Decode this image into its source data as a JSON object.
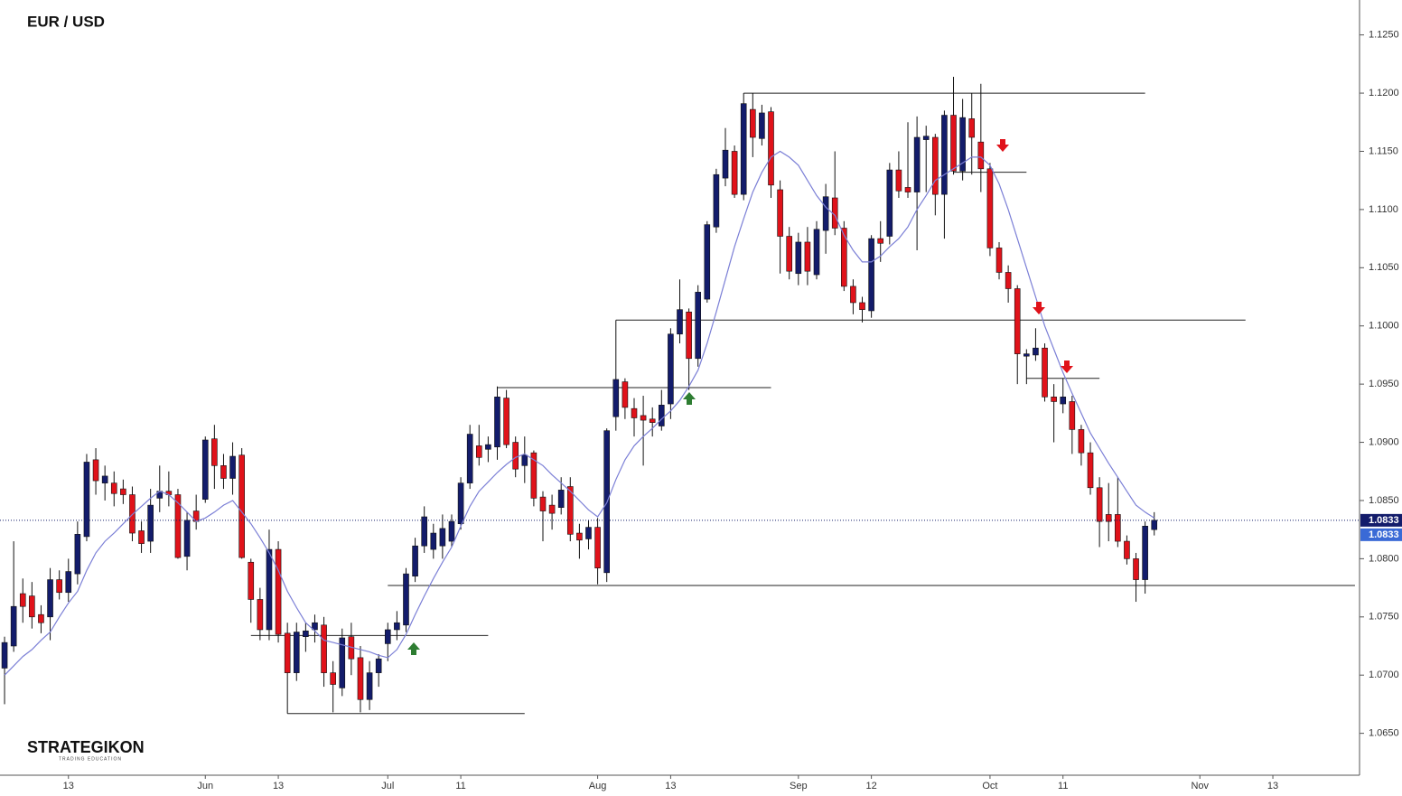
{
  "chart_data": {
    "type": "candlestick",
    "title": "EUR / USD",
    "logo": "STRATEGIKON",
    "logo_tagline": "TRADING EDUCATION",
    "up_color": "#131c6b",
    "down_color": "#e0121a",
    "ma_color": "#7b7fd6",
    "level_color": "#222222",
    "categories": [
      null,
      null,
      null,
      null,
      null,
      null,
      null,
      "13",
      null,
      null,
      null,
      null,
      null,
      null,
      null,
      null,
      null,
      null,
      null,
      null,
      null,
      null,
      "Jun",
      null,
      null,
      null,
      null,
      null,
      null,
      null,
      "13",
      null,
      null,
      null,
      null,
      null,
      null,
      null,
      null,
      null,
      null,
      null,
      "Jul",
      null,
      null,
      null,
      null,
      null,
      null,
      null,
      "11",
      null,
      null,
      null,
      null,
      null,
      null,
      null,
      null,
      null,
      null,
      null,
      null,
      null,
      null,
      "Aug",
      null,
      null,
      null,
      null,
      null,
      null,
      null,
      "13",
      null,
      null,
      null,
      null,
      null,
      null,
      null,
      null,
      null,
      null,
      null,
      null,
      null,
      "Sep",
      null,
      null,
      null,
      null,
      null,
      null,
      null,
      "12",
      null,
      null,
      null,
      null,
      null,
      null,
      null,
      null,
      null,
      null,
      null,
      null,
      "Oct",
      null,
      null,
      null,
      null,
      null,
      null,
      null,
      "11",
      null,
      null,
      null,
      null,
      null,
      null,
      null,
      null,
      null,
      null,
      null,
      null,
      null,
      null,
      "Nov",
      null,
      null,
      null,
      null,
      null,
      null,
      null,
      "13",
      null,
      null,
      null,
      null,
      null,
      null,
      null,
      null,
      null
    ],
    "open": [
      1.0706,
      1.0725,
      1.077,
      1.0768,
      1.0752,
      1.075,
      1.0782,
      1.0771,
      1.0787,
      1.0819,
      1.0885,
      1.0865,
      1.0865,
      1.086,
      1.0855,
      1.0824,
      1.0815,
      1.0852,
      1.0858,
      1.0855,
      1.0802,
      1.0841,
      1.0851,
      1.0903,
      1.088,
      1.0869,
      1.0889,
      1.0797,
      1.0765,
      1.0739,
      1.0808,
      1.0736,
      1.0702,
      1.0733,
      1.0739,
      1.0743,
      1.0702,
      1.0689,
      1.0733,
      1.0715,
      1.0679,
      1.0702,
      1.0727,
      1.0739,
      1.0743,
      1.0785,
      1.0811,
      1.0808,
      1.0811,
      1.0815,
      1.083,
      1.0865,
      1.0897,
      1.0894,
      1.0896,
      1.0938,
      1.09,
      1.088,
      1.0891,
      1.0853,
      1.0846,
      1.0844,
      1.0862,
      1.0822,
      1.0817,
      1.0827,
      1.0788,
      1.0922,
      1.0952,
      1.0929,
      1.0923,
      1.092,
      1.0914,
      1.0933,
      1.0993,
      1.1012,
      1.0972,
      1.1023,
      1.1085,
      1.1127,
      1.115,
      1.1113,
      1.1186,
      1.1161,
      1.1184,
      1.1117,
      1.1077,
      1.1045,
      1.1072,
      1.1044,
      1.1082,
      1.111,
      1.1084,
      1.1034,
      1.102,
      1.1013,
      1.1075,
      1.1077,
      1.1134,
      1.1119,
      1.1115,
      1.116,
      1.1162,
      1.1113,
      1.1181,
      1.1133,
      1.1178,
      1.1158,
      1.1135,
      1.1067,
      1.1046,
      1.1032,
      1.0974,
      1.0975,
      1.0981,
      1.0939,
      1.0933,
      1.0935,
      1.0911,
      1.0891,
      1.0861,
      1.0838,
      1.0838,
      1.0815,
      1.08,
      1.0782,
      1.0825,
      null,
      null,
      null,
      null,
      null,
      null,
      null,
      null,
      null,
      null,
      null,
      null,
      null,
      null,
      null,
      null,
      null,
      null,
      null,
      null,
      null,
      null
    ],
    "high": [
      1.0733,
      1.0815,
      1.0783,
      1.078,
      1.076,
      1.0792,
      1.079,
      1.08,
      1.0832,
      1.089,
      1.0895,
      1.088,
      1.0875,
      1.0868,
      1.0862,
      1.0832,
      1.086,
      1.088,
      1.0875,
      1.086,
      1.084,
      1.0855,
      1.0905,
      1.0915,
      1.089,
      1.09,
      1.0895,
      1.08,
      1.0775,
      1.0825,
      1.0815,
      1.0745,
      1.0745,
      1.0745,
      1.0752,
      1.075,
      1.0712,
      1.074,
      1.0745,
      1.0725,
      1.0712,
      1.0718,
      1.0745,
      1.0755,
      1.0792,
      1.0818,
      1.0845,
      1.083,
      1.0838,
      1.0838,
      1.087,
      1.0915,
      1.0915,
      1.0905,
      1.0948,
      1.0945,
      1.0905,
      1.0905,
      1.0893,
      1.0858,
      1.0855,
      1.087,
      1.087,
      1.083,
      1.0833,
      1.0835,
      1.0912,
      1.1005,
      1.0955,
      1.0938,
      1.094,
      1.093,
      1.0945,
      1.0998,
      1.104,
      1.1015,
      1.1035,
      1.109,
      1.1135,
      1.117,
      1.1155,
      1.12,
      1.12,
      1.119,
      1.1188,
      1.1125,
      1.1085,
      1.108,
      1.1085,
      1.109,
      1.1122,
      1.115,
      1.109,
      1.104,
      1.1025,
      1.1078,
      1.109,
      1.114,
      1.115,
      1.1175,
      1.118,
      1.1172,
      1.1165,
      1.1185,
      1.1214,
      1.1195,
      1.12,
      1.1208,
      1.114,
      1.1072,
      1.1052,
      1.1035,
      1.098,
      1.0998,
      1.0985,
      1.095,
      1.0955,
      1.094,
      1.0915,
      1.09,
      1.087,
      1.0865,
      1.087,
      1.082,
      1.0805,
      1.0832,
      1.084,
      null,
      null,
      null,
      null,
      null,
      null,
      null,
      null,
      null,
      null,
      null,
      null,
      null,
      null,
      null,
      null,
      null,
      null,
      null,
      null,
      null,
      null
    ],
    "low": [
      1.0675,
      1.072,
      1.0745,
      1.074,
      1.0736,
      1.073,
      1.0765,
      1.0763,
      1.0778,
      1.0815,
      1.0855,
      1.085,
      1.0845,
      1.0847,
      1.0815,
      1.0805,
      1.0805,
      1.084,
      1.0845,
      1.08,
      1.079,
      1.0825,
      1.0848,
      1.086,
      1.086,
      1.0855,
      1.08,
      1.0745,
      1.073,
      1.073,
      1.0728,
      1.0667,
      1.0695,
      1.072,
      1.0728,
      1.069,
      1.0668,
      1.0682,
      1.07,
      1.0668,
      1.067,
      1.069,
      1.0712,
      1.073,
      1.0737,
      1.078,
      1.0805,
      1.08,
      1.08,
      1.081,
      1.0825,
      1.086,
      1.088,
      1.0883,
      1.0885,
      1.0895,
      1.087,
      1.0865,
      1.0845,
      1.0815,
      1.0825,
      1.0838,
      1.0815,
      1.08,
      1.0808,
      1.0778,
      1.078,
      1.091,
      1.092,
      1.0905,
      1.088,
      1.0905,
      1.091,
      1.092,
      1.0985,
      1.0945,
      1.0965,
      1.102,
      1.108,
      1.112,
      1.111,
      1.1108,
      1.1145,
      1.1155,
      1.111,
      1.1045,
      1.104,
      1.1035,
      1.1035,
      1.104,
      1.1062,
      1.1078,
      1.103,
      1.101,
      1.1003,
      1.1007,
      1.1055,
      1.107,
      1.111,
      1.111,
      1.1065,
      1.1115,
      1.1095,
      1.1075,
      1.113,
      1.1125,
      1.113,
      1.1115,
      1.106,
      1.104,
      1.102,
      1.095,
      1.095,
      1.097,
      1.0935,
      1.09,
      1.0925,
      1.089,
      1.088,
      1.0855,
      1.081,
      1.0815,
      1.081,
      1.0795,
      1.0763,
      1.077,
      1.082,
      null,
      null,
      null,
      null,
      null,
      null,
      null,
      null,
      null,
      null,
      null,
      null,
      null,
      null,
      null,
      null,
      null,
      null,
      null,
      null,
      null,
      null
    ],
    "close": [
      1.0728,
      1.0759,
      1.0759,
      1.075,
      1.0745,
      1.0782,
      1.0771,
      1.0789,
      1.0821,
      1.0883,
      1.0867,
      1.0871,
      1.0856,
      1.0855,
      1.0822,
      1.0813,
      1.0846,
      1.0858,
      1.0855,
      1.0801,
      1.0833,
      1.0832,
      1.0902,
      1.088,
      1.0869,
      1.0888,
      1.0801,
      1.0765,
      1.0739,
      1.0808,
      1.0735,
      1.0702,
      1.0737,
      1.0738,
      1.0745,
      1.0702,
      1.0692,
      1.0732,
      1.0714,
      1.0679,
      1.0702,
      1.0714,
      1.0739,
      1.0745,
      1.0787,
      1.0811,
      1.0836,
      1.0822,
      1.0826,
      1.0832,
      1.0865,
      1.0907,
      1.0887,
      1.0898,
      1.0939,
      1.0898,
      1.0877,
      1.0889,
      1.0852,
      1.0841,
      1.0839,
      1.0859,
      1.0821,
      1.0816,
      1.0827,
      1.0792,
      1.091,
      1.0954,
      1.093,
      1.0921,
      1.0919,
      1.0917,
      1.0932,
      1.0993,
      1.1014,
      1.0972,
      1.1029,
      1.1087,
      1.113,
      1.1151,
      1.1113,
      1.1191,
      1.1162,
      1.1183,
      1.1121,
      1.1077,
      1.1047,
      1.1072,
      1.1047,
      1.1083,
      1.1111,
      1.1084,
      1.1034,
      1.102,
      1.1014,
      1.1075,
      1.1071,
      1.1134,
      1.1116,
      1.1115,
      1.1162,
      1.1163,
      1.1113,
      1.1181,
      1.1133,
      1.1179,
      1.1162,
      1.1135,
      1.1067,
      1.1046,
      1.1032,
      1.0976,
      1.0976,
      1.0981,
      1.0939,
      1.0935,
      1.0939,
      1.0911,
      1.0891,
      1.0861,
      1.0832,
      1.0832,
      1.0815,
      1.08,
      1.0782,
      1.0828,
      1.0833,
      null,
      null,
      null,
      null,
      null,
      null,
      null,
      null,
      null,
      null,
      null,
      null,
      null,
      null,
      null,
      null,
      null,
      null,
      null,
      null,
      null,
      null
    ],
    "ma": [
      1.07,
      1.0708,
      1.0716,
      1.0722,
      1.073,
      1.0737,
      1.075,
      1.0762,
      1.0772,
      1.079,
      1.0805,
      1.0815,
      1.0822,
      1.083,
      1.0838,
      1.0845,
      1.0852,
      1.0858,
      1.0855,
      1.0848,
      1.084,
      1.0832,
      1.0835,
      1.084,
      1.0846,
      1.085,
      1.084,
      1.083,
      1.0818,
      1.0805,
      1.079,
      1.0772,
      1.0758,
      1.0745,
      1.0738,
      1.073,
      1.0728,
      1.0726,
      1.0724,
      1.0722,
      1.072,
      1.0717,
      1.0715,
      1.0722,
      1.0735,
      1.0752,
      1.0768,
      1.0783,
      1.0797,
      1.081,
      1.0828,
      1.0845,
      1.0858,
      1.0866,
      1.0874,
      1.0881,
      1.0887,
      1.089,
      1.0885,
      1.088,
      1.0872,
      1.0865,
      1.0858,
      1.085,
      1.0842,
      1.0836,
      1.0848,
      1.0868,
      1.0885,
      1.0897,
      1.0905,
      1.0912,
      1.092,
      1.0927,
      1.0936,
      1.0948,
      1.0962,
      1.0985,
      1.1012,
      1.104,
      1.1068,
      1.1092,
      1.1115,
      1.1132,
      1.1145,
      1.115,
      1.1145,
      1.1138,
      1.1125,
      1.1112,
      1.1102,
      1.1095,
      1.1078,
      1.1065,
      1.1055,
      1.1055,
      1.106,
      1.1068,
      1.1075,
      1.1085,
      1.11,
      1.1112,
      1.1125,
      1.113,
      1.1135,
      1.114,
      1.1145,
      1.1145,
      1.1138,
      1.1122,
      1.11,
      1.1075,
      1.105,
      1.1025,
      1.1,
      1.098,
      1.096,
      1.0942,
      1.0925,
      1.0908,
      1.0895,
      1.0882,
      1.087,
      1.0858,
      1.0846,
      1.084,
      1.0835,
      null,
      null,
      null,
      null,
      null,
      null,
      null,
      null,
      null,
      null,
      null,
      null,
      null,
      null,
      null,
      null,
      null,
      null,
      null,
      null,
      null,
      null
    ],
    "levels": [
      {
        "value": 1.12,
        "from": 81,
        "to": 125
      },
      {
        "value": 1.1132,
        "from": 104,
        "to": 112
      },
      {
        "value": 1.1005,
        "from": 67,
        "to": 136
      },
      {
        "value": 1.0947,
        "from": 54,
        "to": 84
      },
      {
        "value": 1.0955,
        "from": 112,
        "to": 120
      },
      {
        "value": 1.0777,
        "from": 42,
        "to": 148
      },
      {
        "value": 1.0734,
        "from": 27,
        "to": 53
      },
      {
        "value": 1.0667,
        "from": 31,
        "to": 57
      }
    ],
    "price_labels": [
      {
        "value": 1.0833,
        "label": "1.0833",
        "color": "#131c6b"
      },
      {
        "value": 1.0833,
        "label": "1.0833",
        "color": "#3a6ad6"
      }
    ],
    "ylim": [
      1.0614,
      1.128
    ],
    "yticks": [
      {
        "value": 1.125,
        "label": "1.1250"
      },
      {
        "value": 1.12,
        "label": "1.1200"
      },
      {
        "value": 1.115,
        "label": "1.1150"
      },
      {
        "value": 1.11,
        "label": "1.1100"
      },
      {
        "value": 1.105,
        "label": "1.1050"
      },
      {
        "value": 1.1,
        "label": "1.1000"
      },
      {
        "value": 1.095,
        "label": "1.0950"
      },
      {
        "value": 1.09,
        "label": "1.0900"
      },
      {
        "value": 1.085,
        "label": "1.0850"
      },
      {
        "value": 1.08,
        "label": "1.0800"
      },
      {
        "value": 1.075,
        "label": "1.0750"
      },
      {
        "value": 1.07,
        "label": "1.0700"
      },
      {
        "value": 1.065,
        "label": "1.0650"
      }
    ]
  }
}
